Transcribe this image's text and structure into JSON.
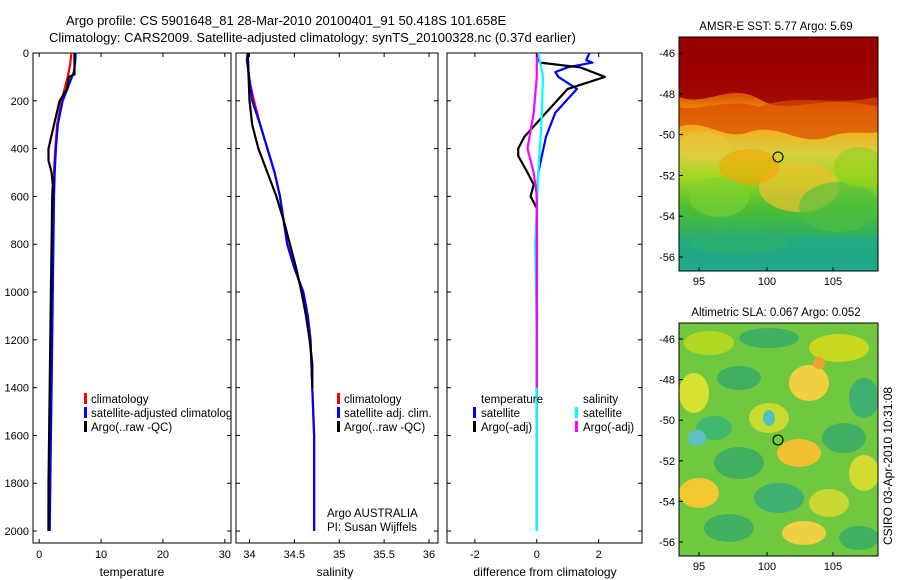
{
  "header": {
    "line1": "Argo profile: CS 5901648_81 28-Mar-2010 20100401_91 50.418S 101.658E",
    "line2": "Climatology: CARS2009. Satellite-adjusted climatology: synTS_20100328.nc (0.37d earlier)"
  },
  "credit": "CSIRO 03-Apr-2010 10:31:08",
  "colors": {
    "climatology": "#ff0000",
    "satellite_adjusted": "#0000ff",
    "argo": "#000000",
    "salinity_satellite": "#00ffff",
    "salinity_argo": "#ff00ff"
  },
  "chart_data": [
    {
      "type": "line",
      "panel": "temperature",
      "xlabel": "temperature",
      "ylabel": "",
      "xlim": [
        -1,
        31
      ],
      "ylim": [
        2050,
        0
      ],
      "xticks": [
        0,
        10,
        20,
        30
      ],
      "yticks": [
        0,
        200,
        400,
        600,
        800,
        1000,
        1200,
        1400,
        1600,
        1800,
        2000
      ],
      "legend": [
        "climatology",
        "satellite-adjusted climatology",
        "Argo(..raw -QC)"
      ],
      "legend_placement": "lower-left",
      "series": [
        {
          "name": "climatology",
          "color": "#ff0000",
          "points": [
            [
              5.2,
              0
            ],
            [
              5.0,
              50
            ],
            [
              4.6,
              100
            ],
            [
              3.6,
              200
            ],
            [
              2.9,
              300
            ],
            [
              2.6,
              400
            ],
            [
              2.4,
              500
            ],
            [
              2.3,
              600
            ],
            [
              2.2,
              800
            ],
            [
              2.1,
              1000
            ],
            [
              2.0,
              1200
            ],
            [
              1.9,
              1400
            ],
            [
              1.8,
              1600
            ],
            [
              1.6,
              1800
            ],
            [
              1.5,
              1900
            ],
            [
              1.5,
              2000
            ]
          ]
        },
        {
          "name": "satellite-adjusted climatology",
          "color": "#0000ff",
          "points": [
            [
              5.9,
              0
            ],
            [
              5.8,
              40
            ],
            [
              5.6,
              80
            ],
            [
              5.0,
              120
            ],
            [
              3.8,
              200
            ],
            [
              3.0,
              300
            ],
            [
              2.7,
              400
            ],
            [
              2.5,
              500
            ],
            [
              2.4,
              600
            ],
            [
              2.3,
              800
            ],
            [
              2.2,
              1000
            ],
            [
              2.1,
              1200
            ],
            [
              2.0,
              1400
            ],
            [
              1.9,
              1600
            ],
            [
              1.8,
              1800
            ],
            [
              1.7,
              2000
            ]
          ]
        },
        {
          "name": "Argo(..raw -QC)",
          "color": "#000000",
          "points": [
            [
              5.7,
              0
            ],
            [
              5.7,
              90
            ],
            [
              4.8,
              100
            ],
            [
              4.5,
              150
            ],
            [
              3.3,
              200
            ],
            [
              2.4,
              300
            ],
            [
              1.5,
              400
            ],
            [
              1.5,
              450
            ],
            [
              2.0,
              500
            ],
            [
              2.2,
              550
            ],
            [
              2.1,
              600
            ],
            [
              2.0,
              800
            ],
            [
              1.9,
              1000
            ],
            [
              1.8,
              1200
            ],
            [
              1.7,
              1400
            ],
            [
              1.6,
              1600
            ],
            [
              1.5,
              1800
            ],
            [
              1.5,
              2000
            ]
          ]
        }
      ]
    },
    {
      "type": "line",
      "panel": "salinity",
      "xlabel": "salinity",
      "ylabel": "",
      "xlim": [
        33.85,
        36.1
      ],
      "ylim": [
        2050,
        0
      ],
      "xticks": [
        34,
        34.5,
        35,
        35.5,
        36
      ],
      "legend": [
        "climatology",
        "satellite adj. clim.",
        "Argo(..raw -QC)"
      ],
      "legend_placement": "lower-right",
      "annotation": [
        "Argo AUSTRALIA",
        "PI: Susan Wijffels"
      ],
      "series": [
        {
          "name": "climatology",
          "color": "#ff0000",
          "points": [
            [
              33.98,
              0
            ],
            [
              33.99,
              100
            ],
            [
              34.05,
              200
            ],
            [
              34.12,
              300
            ],
            [
              34.2,
              400
            ],
            [
              34.28,
              500
            ],
            [
              34.34,
              600
            ],
            [
              34.42,
              800
            ],
            [
              34.5,
              900
            ],
            [
              34.6,
              1000
            ],
            [
              34.65,
              1100
            ],
            [
              34.68,
              1200
            ],
            [
              34.7,
              1400
            ],
            [
              34.72,
              1600
            ],
            [
              34.72,
              1800
            ],
            [
              34.72,
              2000
            ]
          ]
        },
        {
          "name": "satellite adj. clim.",
          "color": "#0000ff",
          "points": [
            [
              33.98,
              0
            ],
            [
              33.97,
              30
            ],
            [
              33.99,
              80
            ],
            [
              34.03,
              200
            ],
            [
              34.12,
              300
            ],
            [
              34.2,
              400
            ],
            [
              34.28,
              500
            ],
            [
              34.34,
              600
            ],
            [
              34.42,
              800
            ],
            [
              34.5,
              900
            ],
            [
              34.6,
              1000
            ],
            [
              34.65,
              1100
            ],
            [
              34.68,
              1200
            ],
            [
              34.7,
              1400
            ],
            [
              34.72,
              1600
            ],
            [
              34.72,
              1800
            ],
            [
              34.72,
              2000
            ]
          ]
        },
        {
          "name": "Argo(..raw -QC)",
          "color": "#000000",
          "points": [
            [
              33.98,
              0
            ],
            [
              33.99,
              100
            ],
            [
              34.0,
              200
            ],
            [
              34.03,
              300
            ],
            [
              34.1,
              400
            ],
            [
              34.2,
              500
            ],
            [
              34.3,
              600
            ],
            [
              34.38,
              700
            ],
            [
              34.45,
              800
            ],
            [
              34.52,
              900
            ],
            [
              34.58,
              1000
            ],
            [
              34.63,
              1100
            ],
            [
              34.67,
              1200
            ],
            [
              34.7,
              1300
            ],
            [
              34.7,
              1400
            ]
          ]
        }
      ]
    },
    {
      "type": "line",
      "panel": "difference",
      "xlabel": "difference from climatology",
      "ylabel": "",
      "xlim": [
        -2.9,
        3.4
      ],
      "ylim": [
        2050,
        0
      ],
      "xticks": [
        -2,
        0,
        2
      ],
      "legend_groups": [
        {
          "title": "temperature",
          "items": [
            "satellite",
            "Argo(-adj)"
          ]
        },
        {
          "title": "salinity",
          "items": [
            "satellite",
            "Argo(-adj)"
          ]
        }
      ],
      "legend_placement": "lower",
      "series": [
        {
          "name": "temperature satellite",
          "color": "#0000ff",
          "points": [
            [
              1.7,
              0
            ],
            [
              1.6,
              30
            ],
            [
              1.8,
              40
            ],
            [
              1.0,
              60
            ],
            [
              0.6,
              80
            ],
            [
              0.7,
              100
            ],
            [
              1.3,
              150
            ],
            [
              0.6,
              250
            ],
            [
              0.3,
              350
            ],
            [
              0.05,
              500
            ],
            [
              0.0,
              600
            ],
            [
              0.0,
              1000
            ],
            [
              0.0,
              2000
            ]
          ]
        },
        {
          "name": "temperature Argo(-adj)",
          "color": "#000000",
          "points": [
            [
              0.0,
              0
            ],
            [
              0.1,
              40
            ],
            [
              1.4,
              60
            ],
            [
              2.2,
              100
            ],
            [
              1.0,
              150
            ],
            [
              0.3,
              250
            ],
            [
              -0.4,
              350
            ],
            [
              -0.6,
              400
            ],
            [
              -0.6,
              430
            ],
            [
              -0.3,
              500
            ],
            [
              -0.1,
              550
            ],
            [
              -0.2,
              600
            ],
            [
              0.0,
              650
            ],
            [
              0.0,
              800
            ],
            [
              0.0,
              1000
            ]
          ]
        },
        {
          "name": "salinity satellite",
          "color": "#00ffff",
          "points": [
            [
              0.05,
              0
            ],
            [
              0.2,
              100
            ],
            [
              0.15,
              300
            ],
            [
              0.05,
              500
            ],
            [
              -0.05,
              800
            ],
            [
              0.0,
              1200
            ],
            [
              0.0,
              2000
            ]
          ]
        },
        {
          "name": "salinity Argo(-adj)",
          "color": "#ff00ff",
          "points": [
            [
              0.0,
              0
            ],
            [
              0.0,
              100
            ],
            [
              -0.1,
              250
            ],
            [
              -0.3,
              400
            ],
            [
              -0.1,
              500
            ],
            [
              0.0,
              600
            ],
            [
              0.0,
              1000
            ],
            [
              0.0,
              1400
            ]
          ]
        }
      ]
    }
  ],
  "maps": [
    {
      "title": "AMSR-E SST: 5.77 Argo: 5.69",
      "yticks": [
        "-46",
        "-48",
        "-50",
        "-52",
        "-54",
        "-56"
      ],
      "xticks": [
        "95",
        "100",
        "105"
      ],
      "marker": "Argo float position",
      "palette": [
        "#9a0000",
        "#cc3300",
        "#ee7700",
        "#f5a400",
        "#f0d040",
        "#b0d800",
        "#60c830",
        "#30b060",
        "#20a880"
      ]
    },
    {
      "title": "Altimetric SLA: 0.067 Argo: 0.052",
      "yticks": [
        "-46",
        "-48",
        "-50",
        "-52",
        "-54",
        "-56"
      ],
      "xticks": [
        "95",
        "100",
        "105"
      ],
      "marker": "Argo float position",
      "palette": [
        "#f0d040",
        "#d0e020",
        "#90d030",
        "#60c840",
        "#40b860",
        "#30a870",
        "#40b8c0",
        "#f0a030"
      ]
    }
  ]
}
